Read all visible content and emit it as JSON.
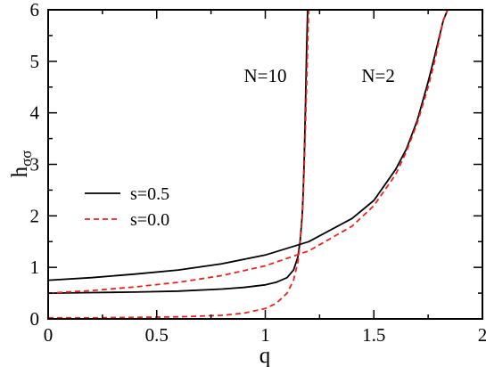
{
  "chart_data": {
    "type": "line",
    "xlabel": "q",
    "ylabel": "h",
    "ylabel_sub": "σσ",
    "xlim": [
      0,
      2
    ],
    "ylim": [
      0,
      6
    ],
    "xticks": [
      0,
      0.5,
      1,
      1.5,
      2
    ],
    "xtick_labels": [
      "0",
      "0.5",
      "1",
      "1.5",
      "2"
    ],
    "yticks": [
      0,
      1,
      2,
      3,
      4,
      5,
      6
    ],
    "ytick_labels": [
      "0",
      "1",
      "2",
      "3",
      "4",
      "5",
      "6"
    ],
    "grid": false,
    "legend": {
      "placement": "left-middle",
      "entries": [
        {
          "label": "s=0.5",
          "color": "#000000",
          "dash": "solid"
        },
        {
          "label": "s=0.0",
          "color": "#e8231f",
          "dash": "dashed"
        }
      ]
    },
    "annotations": [
      {
        "text": "N=10",
        "x": 1.0,
        "y": 4.6
      },
      {
        "text": "N=2",
        "x": 1.52,
        "y": 4.6
      }
    ],
    "series": [
      {
        "legend": "s=0.5",
        "group": "N=10",
        "color": "#000000",
        "dash": "solid",
        "x": [
          0,
          0.2,
          0.4,
          0.6,
          0.8,
          0.9,
          1.0,
          1.05,
          1.1,
          1.13,
          1.15,
          1.16,
          1.17,
          1.175,
          1.18,
          1.185,
          1.19,
          1.195
        ],
        "y": [
          0.5,
          0.51,
          0.52,
          0.54,
          0.58,
          0.61,
          0.66,
          0.71,
          0.8,
          0.95,
          1.2,
          1.5,
          2.0,
          2.5,
          3.2,
          4.1,
          5.2,
          6.0
        ]
      },
      {
        "legend": "s=0.0",
        "group": "N=10",
        "color": "#e8231f",
        "dash": "dashed",
        "x": [
          0,
          0.2,
          0.4,
          0.6,
          0.8,
          0.9,
          1.0,
          1.05,
          1.1,
          1.13,
          1.15,
          1.16,
          1.17,
          1.175,
          1.18,
          1.185,
          1.19,
          1.195,
          1.2
        ],
        "y": [
          0.02,
          0.02,
          0.03,
          0.04,
          0.07,
          0.11,
          0.2,
          0.3,
          0.5,
          0.75,
          1.1,
          1.45,
          1.95,
          2.4,
          3.0,
          3.7,
          4.5,
          5.3,
          6.0
        ]
      },
      {
        "legend": "s=0.5",
        "group": "N=2",
        "color": "#000000",
        "dash": "solid",
        "x": [
          0,
          0.2,
          0.4,
          0.6,
          0.8,
          1.0,
          1.2,
          1.4,
          1.5,
          1.6,
          1.65,
          1.7,
          1.75,
          1.78,
          1.8,
          1.82,
          1.84
        ],
        "y": [
          0.75,
          0.8,
          0.87,
          0.95,
          1.07,
          1.24,
          1.5,
          1.95,
          2.3,
          2.9,
          3.3,
          3.85,
          4.6,
          5.1,
          5.45,
          5.8,
          6.0
        ]
      },
      {
        "legend": "s=0.0",
        "group": "N=2",
        "color": "#e8231f",
        "dash": "dashed",
        "x": [
          0,
          0.2,
          0.4,
          0.6,
          0.8,
          1.0,
          1.2,
          1.4,
          1.5,
          1.6,
          1.65,
          1.7,
          1.75,
          1.78,
          1.8,
          1.82,
          1.84
        ],
        "y": [
          0.5,
          0.55,
          0.62,
          0.71,
          0.84,
          1.03,
          1.32,
          1.8,
          2.2,
          2.8,
          3.25,
          3.8,
          4.5,
          5.0,
          5.4,
          5.8,
          6.0
        ]
      }
    ]
  }
}
